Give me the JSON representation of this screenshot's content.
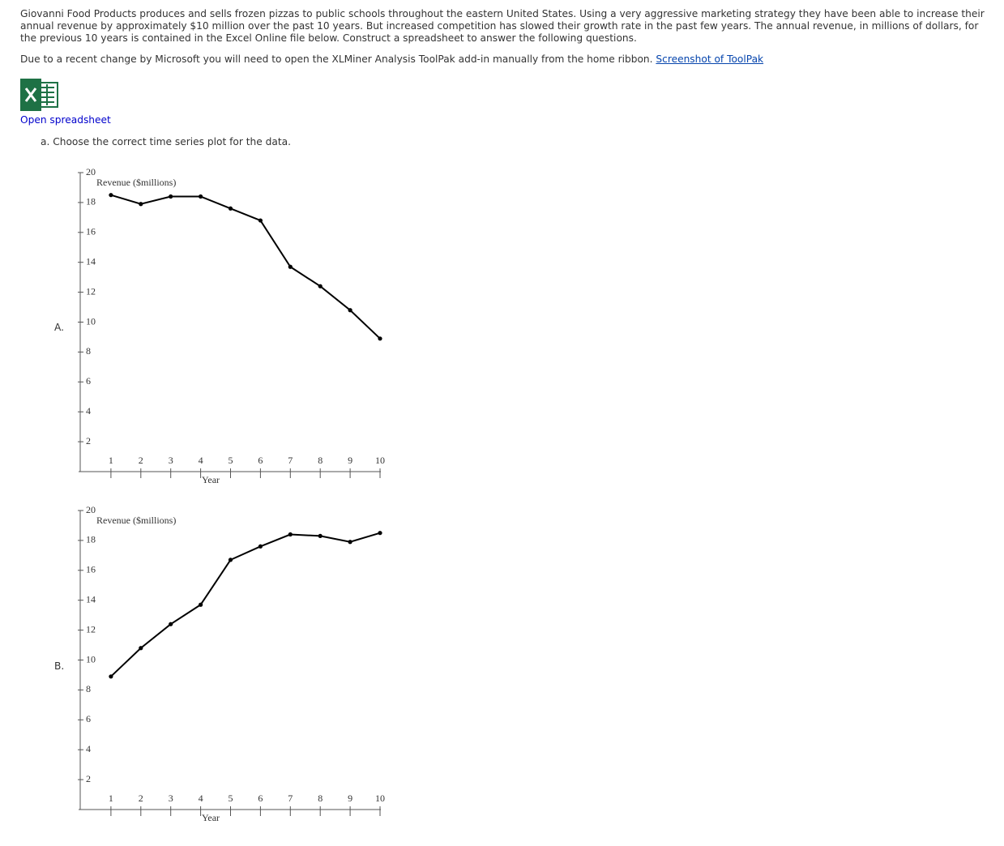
{
  "intro": "Giovanni Food Products produces and sells frozen pizzas to public schools throughout the eastern United States. Using a very aggressive marketing strategy they have been able to increase their annual revenue by approximately $10 million over the past 10 years. But increased competition has slowed their growth rate in the past few years. The annual revenue, in millions of dollars, for the previous 10 years is contained in the Excel Online file below. Construct a spreadsheet to answer the following questions.",
  "note": "Due to a recent change by Microsoft you will need to open the XLMiner Analysis ToolPak add-in manually from the home ribbon.",
  "note_link": "Screenshot of ToolPak",
  "spreadsheet_link": "Open spreadsheet",
  "question": "a. Choose the correct time series plot for the data.",
  "options": [
    "A.",
    "B."
  ],
  "chart_data": [
    {
      "type": "line",
      "y_label": "Revenue ($millions)",
      "x_label": "Year",
      "color": "#000000",
      "x": [
        1,
        2,
        3,
        4,
        5,
        6,
        7,
        8,
        9,
        10
      ],
      "values": [
        18.5,
        17.9,
        18.4,
        18.4,
        17.6,
        16.8,
        13.7,
        12.4,
        10.8,
        8.9
      ],
      "xlim": [
        0,
        10
      ],
      "xticks": [
        1,
        2,
        3,
        4,
        5,
        6,
        7,
        8,
        9,
        10
      ],
      "ylim": [
        0,
        20
      ],
      "yticks": [
        2,
        4,
        6,
        8,
        10,
        12,
        14,
        16,
        18,
        20
      ]
    },
    {
      "type": "line",
      "y_label": "Revenue ($millions)",
      "x_label": "Year",
      "color": "#000000",
      "x": [
        1,
        2,
        3,
        4,
        5,
        6,
        7,
        8,
        9,
        10
      ],
      "values": [
        8.9,
        10.8,
        12.4,
        13.7,
        16.7,
        17.6,
        18.4,
        18.3,
        17.9,
        18.5
      ],
      "xlim": [
        0,
        10
      ],
      "xticks": [
        1,
        2,
        3,
        4,
        5,
        6,
        7,
        8,
        9,
        10
      ],
      "ylim": [
        0,
        20
      ],
      "yticks": [
        2,
        4,
        6,
        8,
        10,
        12,
        14,
        16,
        18,
        20
      ]
    }
  ]
}
